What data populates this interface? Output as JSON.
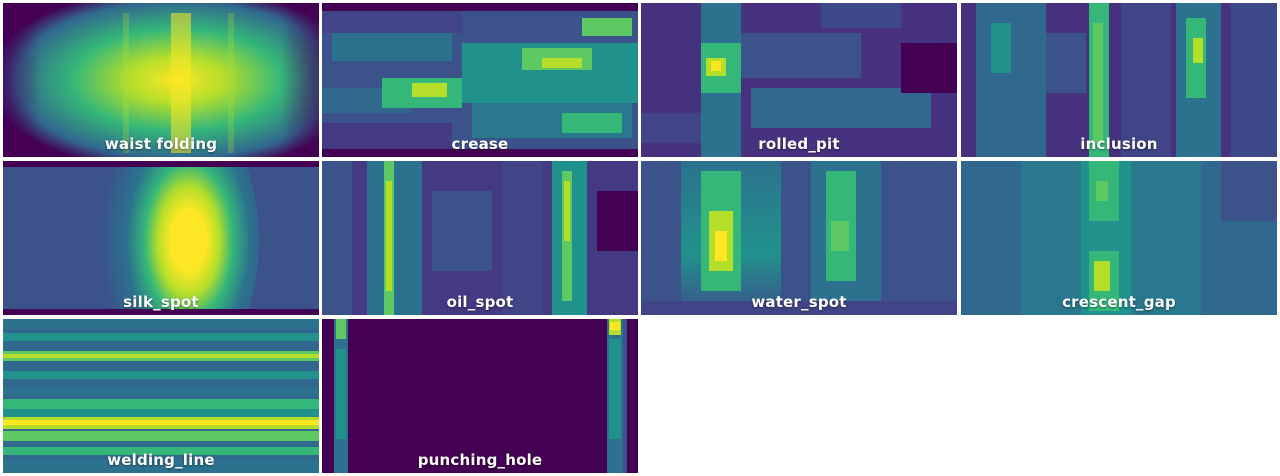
{
  "palette": {
    "background": "#440154",
    "low": "#3b528b",
    "mid": "#21918c",
    "high": "#5ec962",
    "peak": "#fde725"
  },
  "tiles": [
    {
      "label": "waist folding"
    },
    {
      "label": "crease"
    },
    {
      "label": "rolled_pit"
    },
    {
      "label": "inclusion"
    },
    {
      "label": "silk_spot"
    },
    {
      "label": "oil_spot"
    },
    {
      "label": "water_spot"
    },
    {
      "label": "crescent_gap"
    },
    {
      "label": "welding_line"
    },
    {
      "label": "punching_hole"
    }
  ]
}
